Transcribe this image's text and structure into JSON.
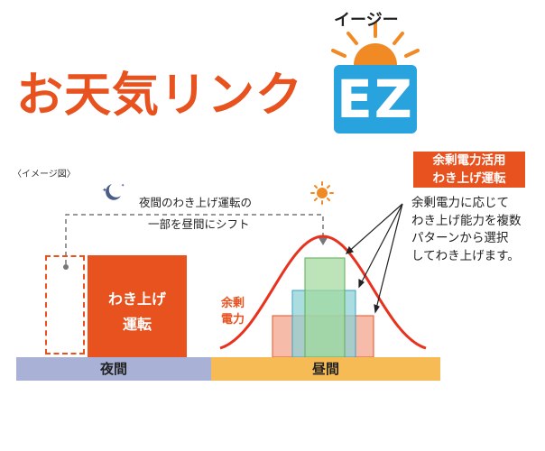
{
  "brand": {
    "title": "お天気リンク",
    "ez": "EZ",
    "ruby": "イージー"
  },
  "diagram": {
    "caption": "〈イメージ図〉",
    "shift_line1": "夜間のわき上げ運転の",
    "shift_line2": "一部を昼間にシフト",
    "block_line1": "わき上げ",
    "block_line2": "運転",
    "surplus_line1": "余剰",
    "surplus_line2": "電力",
    "night_label": "夜間",
    "day_label": "昼間"
  },
  "callout": {
    "title_line1": "余剰電力活用",
    "title_line2": "わき上げ運転",
    "body_line1": "余剰電力に応じて",
    "body_line2": "わき上げ能力を複数",
    "body_line3": "パターンから選択",
    "body_line4": "してわき上げます。"
  },
  "colors": {
    "brand_orange": "#e8521f",
    "ez_blue": "#29a3dd",
    "sun_orange": "#f08a24",
    "night_bar": "#a9b2d6",
    "day_bar": "#f6bb55",
    "curve_red": "#e8321f",
    "pattern_green": "#9fd89a",
    "pattern_teal": "#8fd0d4",
    "pattern_salmon": "#f4b09a",
    "moon": "#4b5c8a"
  },
  "icons": {
    "moon": "moon-icon",
    "sun_small": "sun-icon",
    "sunrise": "sunrise-icon"
  }
}
